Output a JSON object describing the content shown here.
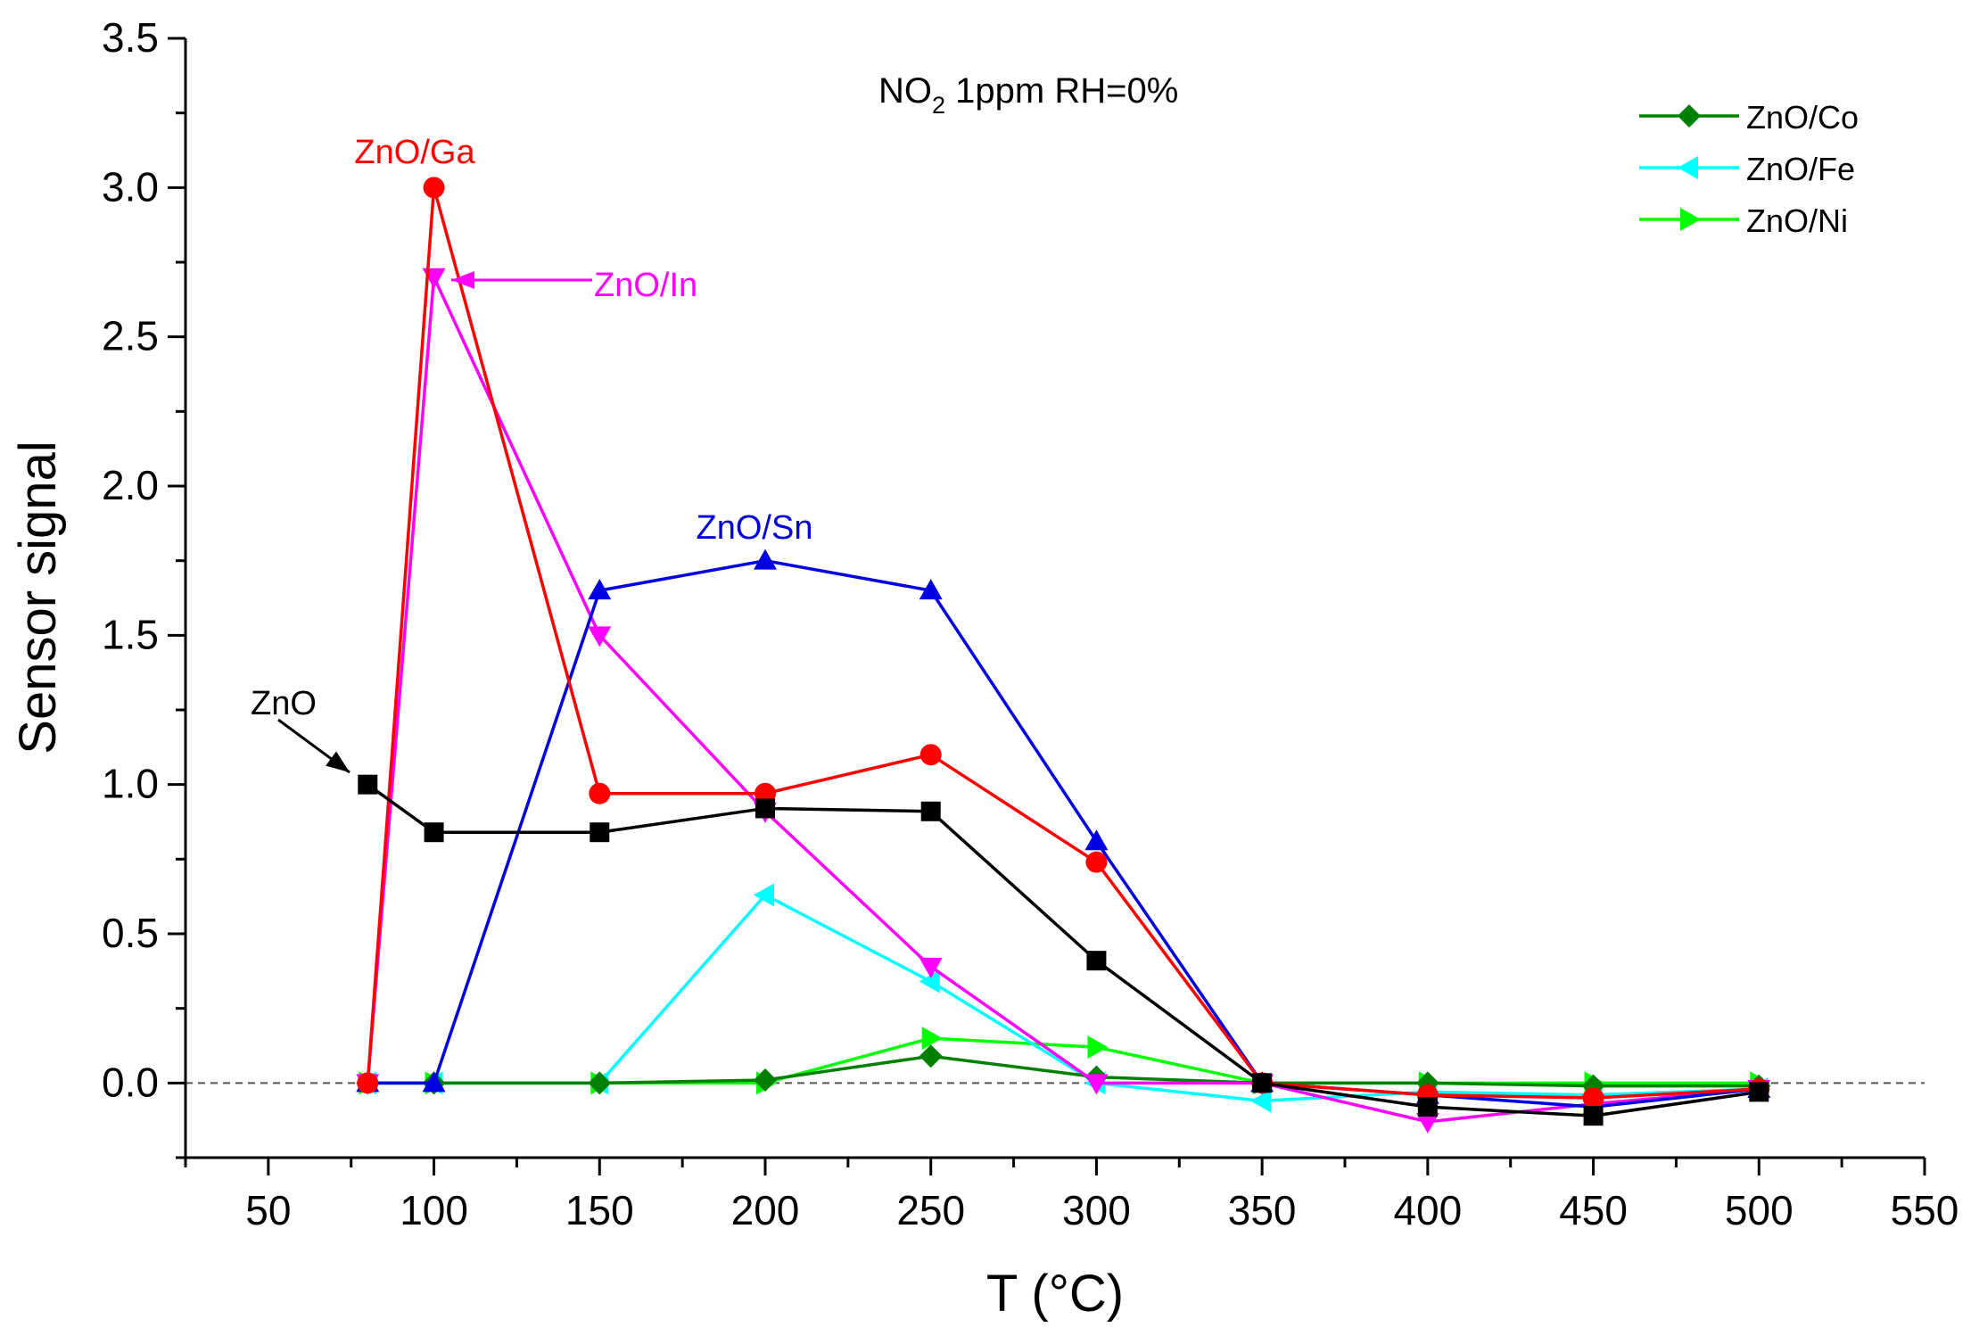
{
  "chart_data": {
    "type": "line",
    "title": "",
    "condition": {
      "main": "NO",
      "sub": "2",
      "rest": " 1ppm RH=0%"
    },
    "xlabel": "T (°C)",
    "ylabel": "Sensor signal",
    "xlim": [
      25,
      550
    ],
    "ylim": [
      -0.25,
      3.5
    ],
    "xticks": [
      50,
      100,
      150,
      200,
      250,
      300,
      350,
      400,
      450,
      500,
      550
    ],
    "yticks": [
      0.0,
      0.5,
      1.0,
      1.5,
      2.0,
      2.5,
      3.0,
      3.5
    ],
    "ytick_labels": [
      "0.0",
      "0.5",
      "1.0",
      "1.5",
      "2.0",
      "2.5",
      "3.0",
      "3.5"
    ],
    "reference_line": 0,
    "x": [
      80,
      100,
      150,
      200,
      250,
      300,
      350,
      400,
      450,
      500
    ],
    "series": [
      {
        "name": "ZnO",
        "color": "#000000",
        "marker": "square",
        "values": [
          1.0,
          0.84,
          0.84,
          0.92,
          0.91,
          0.41,
          0.0,
          -0.08,
          -0.11,
          -0.03
        ]
      },
      {
        "name": "ZnO/Ga",
        "color": "#ff0000",
        "marker": "circle",
        "values": [
          0.0,
          3.0,
          0.97,
          0.97,
          1.1,
          0.74,
          0.0,
          -0.04,
          -0.05,
          -0.02
        ]
      },
      {
        "name": "ZnO/Sn",
        "color": "#0000e0",
        "marker": "triangle-up",
        "values": [
          0.0,
          0.0,
          1.65,
          1.75,
          1.65,
          0.81,
          0.0,
          -0.04,
          -0.08,
          -0.02
        ]
      },
      {
        "name": "ZnO/In",
        "color": "#ff00ff",
        "marker": "triangle-down",
        "values": [
          0.0,
          2.7,
          1.5,
          0.91,
          0.39,
          0.0,
          0.0,
          -0.13,
          -0.07,
          -0.02
        ]
      },
      {
        "name": "ZnO/Co",
        "color": "#008000",
        "marker": "diamond",
        "values": [
          0.0,
          0.0,
          0.0,
          0.01,
          0.09,
          0.02,
          0.0,
          0.0,
          -0.01,
          -0.01
        ]
      },
      {
        "name": "ZnO/Fe",
        "color": "#00ffff",
        "marker": "triangle-left",
        "values": [
          0.0,
          0.0,
          0.0,
          0.63,
          0.34,
          0.0,
          -0.06,
          -0.03,
          -0.04,
          -0.02
        ]
      },
      {
        "name": "ZnO/Ni",
        "color": "#00ff00",
        "marker": "triangle-right",
        "values": [
          0.0,
          0.0,
          0.0,
          0.0,
          0.15,
          0.12,
          0.0,
          0.0,
          0.0,
          0.0
        ]
      }
    ],
    "legend": {
      "position": "top-right",
      "entries": [
        "ZnO/Co",
        "ZnO/Fe",
        "ZnO/Ni"
      ]
    },
    "annotations": [
      {
        "text": "ZnO",
        "color": "#000000",
        "target_series": "ZnO",
        "target_x": 80
      },
      {
        "text": "ZnO/Ga",
        "color": "#ff0000",
        "target_series": "ZnO/Ga",
        "target_x": 100
      },
      {
        "text": "ZnO/In",
        "color": "#ff00ff",
        "target_series": "ZnO/In",
        "target_x": 100
      },
      {
        "text": "ZnO/Sn",
        "color": "#0000e0",
        "target_series": "ZnO/Sn",
        "target_x": 200
      }
    ]
  }
}
